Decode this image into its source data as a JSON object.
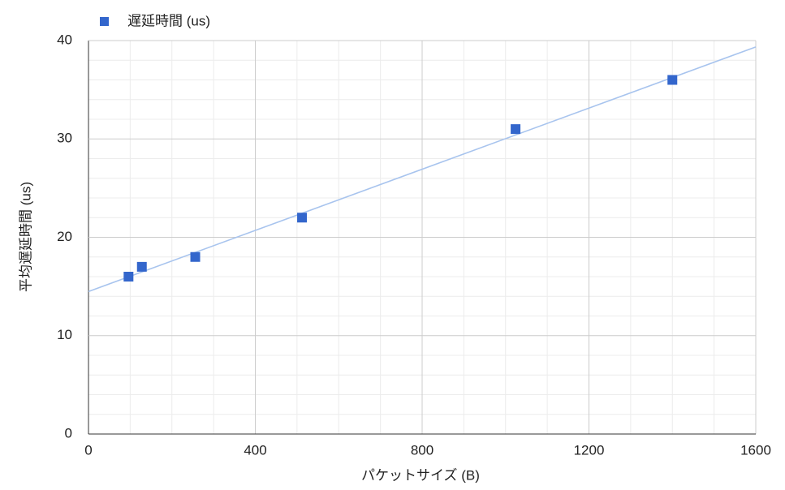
{
  "chart_data": {
    "type": "scatter",
    "x_label": "パケットサイズ (B)",
    "y_label": "平均遅延時間 (us)",
    "series": [
      {
        "name": "遅延時間 (us)",
        "color": "#3366cc",
        "x": [
          96,
          128,
          256,
          512,
          1024,
          1400
        ],
        "values": [
          16,
          17,
          18,
          22,
          31,
          36
        ]
      }
    ],
    "trendline": {
      "type": "linear",
      "color": "#a8c4ee"
    },
    "xlim": [
      0,
      1600
    ],
    "xticks": [
      0,
      400,
      800,
      1200,
      1600
    ],
    "ylim": [
      0,
      40
    ],
    "yticks": [
      0,
      10,
      20,
      30,
      40
    ],
    "grid": true,
    "minor_divisions": {
      "x": 4,
      "y": 5
    },
    "legend": "top-left"
  }
}
